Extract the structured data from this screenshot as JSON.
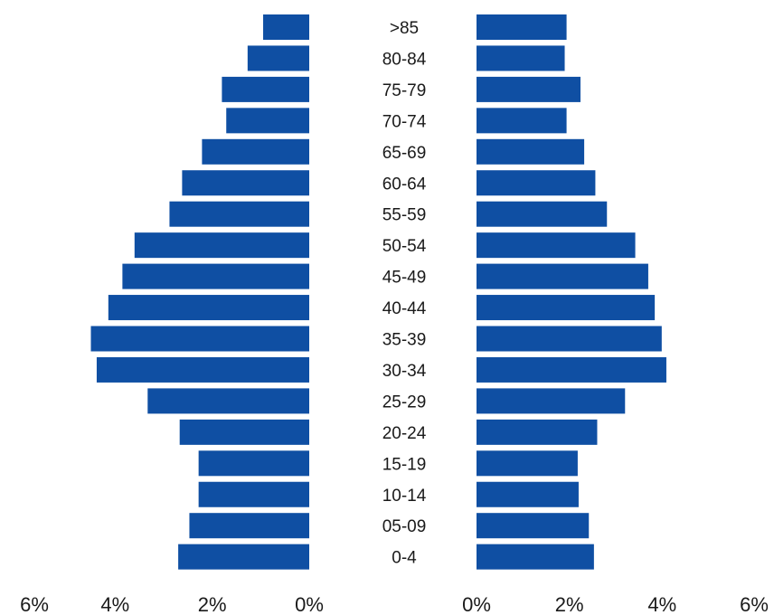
{
  "chart_data": {
    "type": "bar",
    "orientation": "horizontal",
    "layout": "population-pyramid",
    "categories": [
      ">85",
      "80-84",
      "75-79",
      "70-74",
      "65-69",
      "60-64",
      "55-59",
      "50-54",
      "45-49",
      "40-44",
      "35-39",
      "30-34",
      "25-29",
      "20-24",
      "15-19",
      "10-14",
      "05-09",
      "0-4"
    ],
    "series": [
      {
        "side": "left",
        "color": "#0f4fa3",
        "values": [
          0.95,
          1.27,
          1.8,
          1.71,
          2.21,
          2.62,
          2.88,
          3.6,
          3.85,
          4.14,
          4.5,
          4.38,
          3.33,
          2.67,
          2.28,
          2.28,
          2.47,
          2.7
        ]
      },
      {
        "side": "right",
        "color": "#0f4fa3",
        "values": [
          1.94,
          1.9,
          2.24,
          1.94,
          2.32,
          2.56,
          2.81,
          3.42,
          3.7,
          3.84,
          3.99,
          4.09,
          3.2,
          2.6,
          2.18,
          2.2,
          2.42,
          2.53
        ]
      }
    ],
    "xlim": [
      0,
      6
    ],
    "x_ticks_left": [
      "6%",
      "4%",
      "2%",
      "0%"
    ],
    "x_ticks_right": [
      "0%",
      "2%",
      "4%",
      "6%"
    ],
    "grid": false,
    "legend": "none"
  }
}
